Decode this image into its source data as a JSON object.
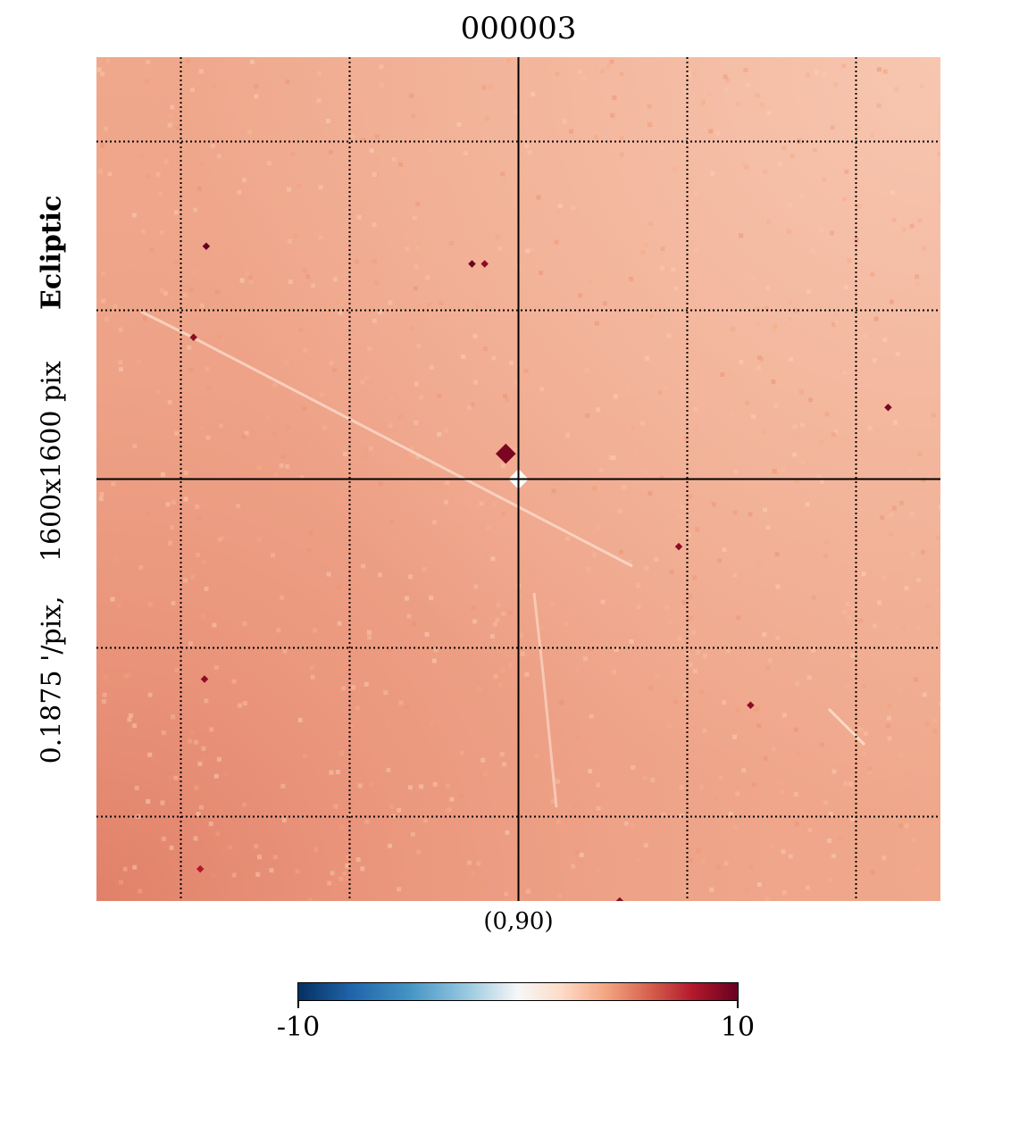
{
  "figure": {
    "title": "000003",
    "center_label": "(0,90)",
    "side_label": {
      "resolution": "0.1875 '/pix,",
      "size": "1600x1600 pix",
      "coordinate_system": "Ecliptic"
    },
    "colorbar": {
      "min_label": "-10",
      "max_label": "10"
    }
  },
  "chart_data": {
    "type": "heatmap",
    "title": "000003",
    "projection": "gnomonic",
    "center": [
      0,
      90
    ],
    "resolution_arcmin_per_pix": 0.1875,
    "image_size_pix": [
      1600,
      1600
    ],
    "coord": "Ecliptic",
    "colormap": "RdBu_r",
    "vmin": -10,
    "vmax": 10,
    "colorbar_ticks": [
      "-10",
      "10"
    ],
    "grid": true,
    "grid_style": "dotted",
    "background_level": 3.5,
    "features": [
      {
        "kind": "hot_spot",
        "u": 0.485,
        "v": 0.47,
        "value": 9.5
      },
      {
        "kind": "cold_spot",
        "u": 0.5,
        "v": 0.5,
        "value": -0.5
      },
      {
        "kind": "hot_spot",
        "u": 0.13,
        "v": 0.224,
        "value": 10
      },
      {
        "kind": "hot_spot",
        "u": 0.445,
        "v": 0.245,
        "value": 10
      },
      {
        "kind": "hot_spot",
        "u": 0.46,
        "v": 0.245,
        "value": 9
      },
      {
        "kind": "hot_spot",
        "u": 0.115,
        "v": 0.332,
        "value": 9
      },
      {
        "kind": "hot_spot",
        "u": 0.128,
        "v": 0.737,
        "value": 9
      },
      {
        "kind": "hot_spot",
        "u": 0.938,
        "v": 0.415,
        "value": 9.5
      },
      {
        "kind": "hot_spot",
        "u": 0.69,
        "v": 0.58,
        "value": 9
      },
      {
        "kind": "hot_spot",
        "u": 0.775,
        "v": 0.768,
        "value": 9
      },
      {
        "kind": "hot_spot",
        "u": 0.123,
        "v": 0.962,
        "value": 8
      },
      {
        "kind": "hot_spot",
        "u": 0.62,
        "v": 1.0,
        "value": 9
      }
    ]
  }
}
